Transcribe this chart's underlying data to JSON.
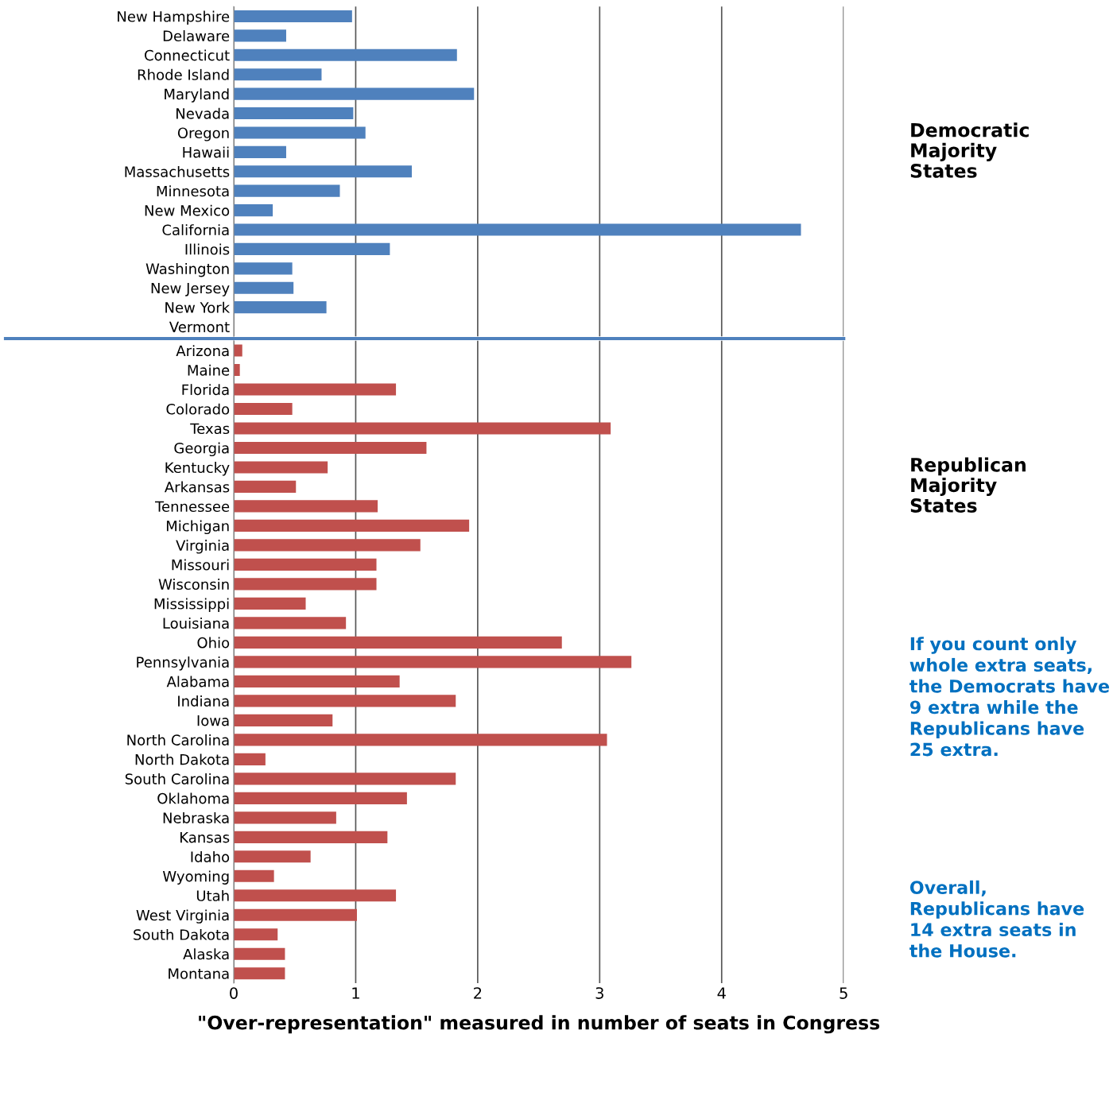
{
  "chart_data": [
    {
      "type": "bar",
      "orientation": "horizontal",
      "tick_labels": "y",
      "categories": [
        "New Hampshire",
        "Delaware",
        "Connecticut",
        "Rhode Island",
        "Maryland",
        "Nevada",
        "Oregon",
        "Hawaii",
        "Massachusetts",
        "Minnesota",
        "New Mexico",
        "California",
        "Illinois",
        "Washington",
        "New Jersey",
        "New York",
        "Vermont"
      ],
      "series": [
        {
          "name": "Democratic Majority States",
          "color": "#4f81bd",
          "values": [
            0.97,
            0.43,
            1.83,
            0.72,
            1.97,
            0.98,
            1.08,
            0.43,
            1.46,
            0.87,
            0.32,
            4.65,
            1.28,
            0.48,
            0.49,
            0.76,
            0
          ]
        }
      ],
      "xlim": [
        0,
        5
      ],
      "xticks": [
        0,
        1,
        2,
        3,
        4,
        5
      ],
      "grid": "x"
    },
    {
      "type": "bar",
      "orientation": "horizontal",
      "xlabel": "\"Over-representation\" measured in number of seats in Congress",
      "categories": [
        "Arizona",
        "Maine",
        "Florida",
        "Colorado",
        "Texas",
        "Georgia",
        "Kentucky",
        "Arkansas",
        "Tennessee",
        "Michigan",
        "Virginia",
        "Missouri",
        "Wisconsin",
        "Mississippi",
        "Louisiana",
        "Ohio",
        "Pennsylvania",
        "Alabama",
        "Indiana",
        "Iowa",
        "North Carolina",
        "North Dakota",
        "South Carolina",
        "Oklahoma",
        "Nebraska",
        "Kansas",
        "Idaho",
        "Wyoming",
        "Utah",
        "West Virginia",
        "South Dakota",
        "Alaska",
        "Montana"
      ],
      "series": [
        {
          "name": "Republican Majority States",
          "color": "#c0504d",
          "values": [
            0.07,
            0.05,
            1.33,
            0.48,
            3.09,
            1.58,
            0.77,
            0.51,
            1.18,
            1.93,
            1.53,
            1.17,
            1.17,
            0.59,
            0.92,
            2.69,
            3.26,
            1.36,
            1.82,
            0.81,
            3.06,
            0.26,
            1.82,
            1.42,
            0.84,
            1.26,
            0.63,
            0.33,
            1.33,
            1.01,
            0.36,
            0.42,
            0.42
          ]
        }
      ],
      "xlim": [
        0,
        5
      ],
      "xticks": [
        0,
        1,
        2,
        3,
        4,
        5
      ],
      "grid": "x",
      "annotations": [
        "If you count only whole extra seats, the Democrats have 9 extra while the Republicans have 25 extra.",
        "Overall, Republicans have 14 extra seats in the House."
      ]
    }
  ]
}
